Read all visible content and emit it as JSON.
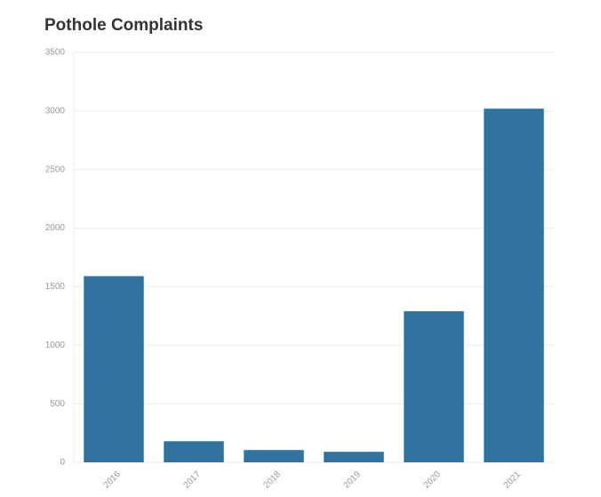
{
  "chart_data": {
    "type": "bar",
    "title": "Pothole Complaints",
    "categories": [
      "2016",
      "2017",
      "2018",
      "2019",
      "2020",
      "2021"
    ],
    "values": [
      1590,
      180,
      105,
      90,
      1290,
      3020
    ],
    "color": "#31739f",
    "ylim": [
      0,
      3500
    ],
    "yticks": [
      0,
      500,
      1000,
      1500,
      2000,
      2500,
      3000,
      3500
    ],
    "grid": true
  }
}
